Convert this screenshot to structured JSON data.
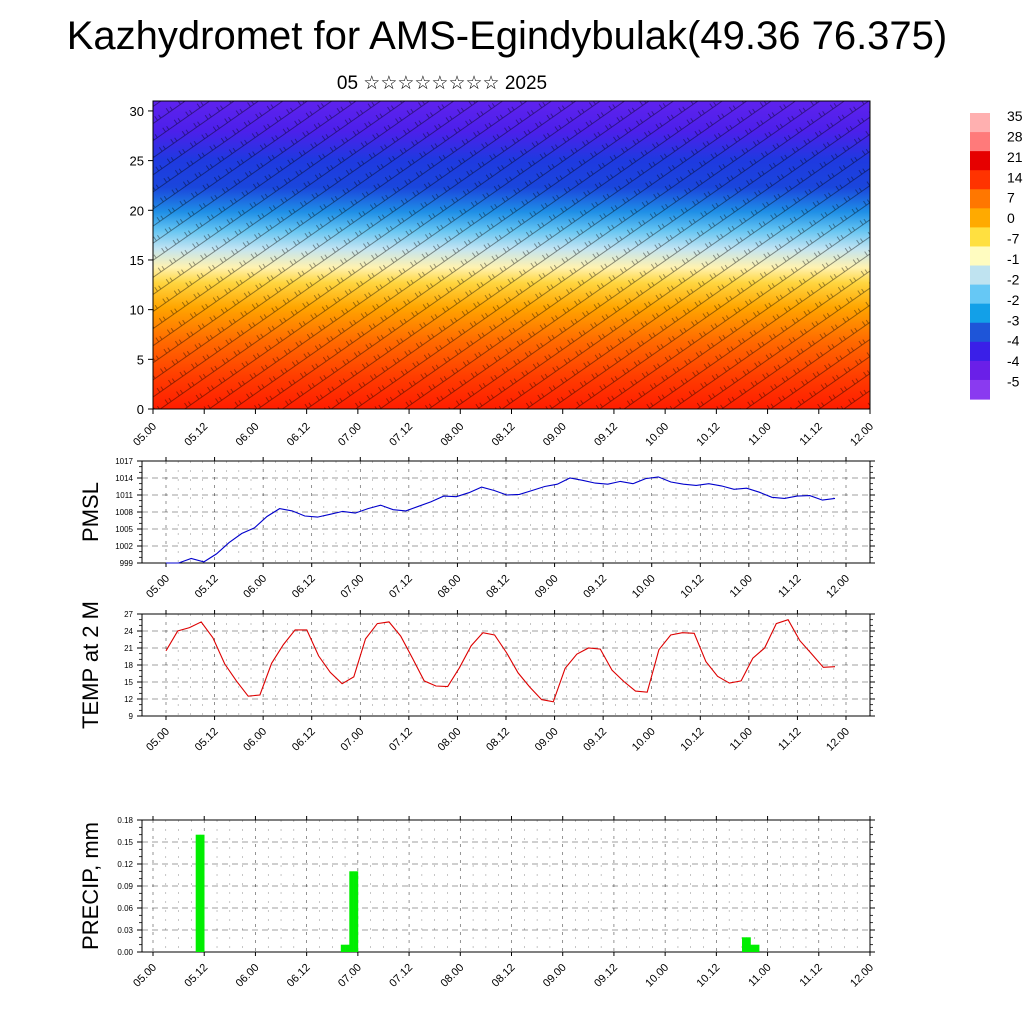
{
  "header": {
    "title": "Kazhydromet for AMS-Egindybulak(49.36 76.375)",
    "subtitle": "05 ☆☆☆☆☆☆☆☆ 2025"
  },
  "colors": {
    "pmsl_line": "#0000cc",
    "temp_line": "#dd0000",
    "precip_bar": "#00ee00",
    "colorbar": [
      "#ffb0b0",
      "#ff7a7a",
      "#e60000",
      "#ff3300",
      "#ff7700",
      "#ffaa00",
      "#ffe040",
      "#fffcc0",
      "#bfe3f0",
      "#66c8f5",
      "#12a0e8",
      "#1e55d8",
      "#3a1fe8",
      "#6a1fe8",
      "#8a3af0"
    ]
  },
  "chart_data": [
    {
      "type": "heatmap",
      "title": "",
      "xlabel": "",
      "ylabel": "",
      "x_ticks": [
        "05.00",
        "05.12",
        "06.00",
        "06.12",
        "07.00",
        "07.12",
        "08.00",
        "08.12",
        "09.00",
        "09.12",
        "10.00",
        "10.12",
        "11.00",
        "11.12",
        "12.00"
      ],
      "y_ticks": [
        0,
        5,
        10,
        15,
        20,
        25,
        30
      ],
      "ylim": [
        0,
        31
      ],
      "colorbar_labels": [
        "35",
        "28",
        "21",
        "14",
        "7",
        "0",
        "-7",
        "-1",
        "-2",
        "-2",
        "-3",
        "-4",
        "-4",
        "-5"
      ],
      "wind_barbs": true
    },
    {
      "type": "line",
      "ylabel": "PMSL",
      "x_ticks": [
        "05.00",
        "05.12",
        "06.00",
        "06.12",
        "07.00",
        "07.12",
        "08.00",
        "08.12",
        "09.00",
        "09.12",
        "10.00",
        "10.12",
        "11.00",
        "11.12",
        "12.00"
      ],
      "y_ticks": [
        "1017",
        "1014",
        "1011",
        "1008",
        "1005",
        "1002",
        "999"
      ],
      "ylim": [
        999,
        1017
      ],
      "grid": true,
      "series": [
        {
          "values": [
            999,
            999,
            999.8,
            999.2,
            1000.6,
            1002.6,
            1004.2,
            1005.2,
            1007.2,
            1008.6,
            1008.2,
            1007.3,
            1007.1,
            1007.6,
            1008.1,
            1007.8,
            1008.6,
            1009.2,
            1008.4,
            1008.2,
            1009,
            1009.8,
            1010.8,
            1010.7,
            1011.4,
            1012.4,
            1011.8,
            1011,
            1011.1,
            1011.8,
            1012.5,
            1012.9,
            1014,
            1013.6,
            1013.1,
            1012.9,
            1013.4,
            1013,
            1013.9,
            1014.2,
            1013.3,
            1012.9,
            1012.7,
            1013,
            1012.6,
            1012,
            1012.2,
            1011.5,
            1010.6,
            1010.4,
            1010.8,
            1010.9,
            1010.1,
            1010.4
          ]
        }
      ]
    },
    {
      "type": "line",
      "ylabel": "TEMP at 2 M",
      "x_ticks": [
        "05.00",
        "05.12",
        "06.00",
        "06.12",
        "07.00",
        "07.12",
        "08.00",
        "08.12",
        "09.00",
        "09.12",
        "10.00",
        "10.12",
        "11.00",
        "11.12",
        "12.00"
      ],
      "y_ticks": [
        "27",
        "24",
        "21",
        "18",
        "15",
        "12",
        "9"
      ],
      "ylim": [
        9,
        27
      ],
      "grid": true,
      "series": [
        {
          "values": [
            20.5,
            24,
            24.6,
            25.6,
            22.8,
            18.2,
            15.2,
            12.5,
            12.7,
            18.3,
            21.6,
            24.2,
            24.2,
            19.6,
            16.7,
            14.7,
            15.9,
            22.6,
            25.3,
            25.6,
            23.1,
            19.2,
            15.2,
            14.3,
            14.2,
            17.5,
            21.4,
            23.7,
            23.3,
            20.2,
            16.6,
            14.1,
            11.9,
            11.5,
            17.4,
            19.9,
            21,
            20.8,
            17.1,
            15.1,
            13.4,
            13.2,
            20.7,
            23.3,
            23.7,
            23.6,
            18.6,
            16,
            14.8,
            15.2,
            19.2,
            21,
            25.3,
            26,
            22.3,
            20,
            17.6,
            17.7
          ]
        }
      ]
    },
    {
      "type": "bar",
      "ylabel": "PRECIP, mm",
      "x_ticks": [
        "05.00",
        "05.12",
        "06.00",
        "06.12",
        "07.00",
        "07.12",
        "08.00",
        "08.12",
        "09.00",
        "09.12",
        "10.00",
        "10.12",
        "11.00",
        "11.12",
        "12.00"
      ],
      "y_ticks": [
        "0.18",
        "0.15",
        "0.12",
        "0.09",
        "0.06",
        "0.03",
        "0.00"
      ],
      "ylim": [
        0,
        0.18
      ],
      "grid": true,
      "series": [
        {
          "values": [
            0,
            0,
            0,
            0,
            0,
            0,
            0,
            0,
            0,
            0,
            0,
            0,
            0,
            0,
            0,
            0,
            0,
            0,
            0,
            0,
            0,
            0,
            0,
            0,
            0,
            0,
            0,
            0,
            0,
            0,
            0,
            0,
            0,
            0,
            0,
            0,
            0,
            0,
            0,
            0,
            0,
            0,
            0,
            0,
            0,
            0,
            0,
            0,
            0,
            0,
            0,
            0,
            0,
            0,
            0,
            0,
            0,
            0,
            0,
            0,
            0,
            0,
            0,
            0,
            0,
            0,
            0,
            0,
            0,
            0,
            0,
            0,
            0,
            0,
            0,
            0,
            0,
            0,
            0,
            0,
            0,
            0,
            0,
            0,
            0,
            0,
            0,
            0,
            0,
            0,
            0,
            0,
            0,
            0,
            0,
            0,
            0,
            0,
            0,
            0,
            0,
            0,
            0,
            0,
            0,
            0,
            0,
            0,
            0,
            0,
            0,
            0,
            0,
            0,
            0,
            0,
            0,
            0,
            0,
            0,
            0,
            0,
            0,
            0,
            0,
            0,
            0,
            0,
            0,
            0,
            0,
            0,
            0,
            0,
            0,
            0,
            0,
            0,
            0,
            0,
            0,
            0,
            0,
            0,
            0,
            0,
            0,
            0,
            0,
            0,
            0,
            0,
            0,
            0,
            0,
            0,
            0,
            0,
            0,
            0,
            0,
            0,
            0,
            0,
            0,
            0,
            0,
            0,
            0
          ]
        },
        {
          "name": "",
          "bars": [
            {
              "t": 10,
              "v": 0.16
            },
            {
              "t": 11,
              "v": 0.16
            },
            {
              "t": 44,
              "v": 0.01
            },
            {
              "t": 45,
              "v": 0.01
            },
            {
              "t": 46,
              "v": 0.11
            },
            {
              "t": 47,
              "v": 0.11
            },
            {
              "t": 138,
              "v": 0.02
            },
            {
              "t": 139,
              "v": 0.02
            },
            {
              "t": 140,
              "v": 0.01
            },
            {
              "t": 141,
              "v": 0.01
            }
          ]
        }
      ],
      "t_range": [
        0,
        168
      ]
    }
  ]
}
